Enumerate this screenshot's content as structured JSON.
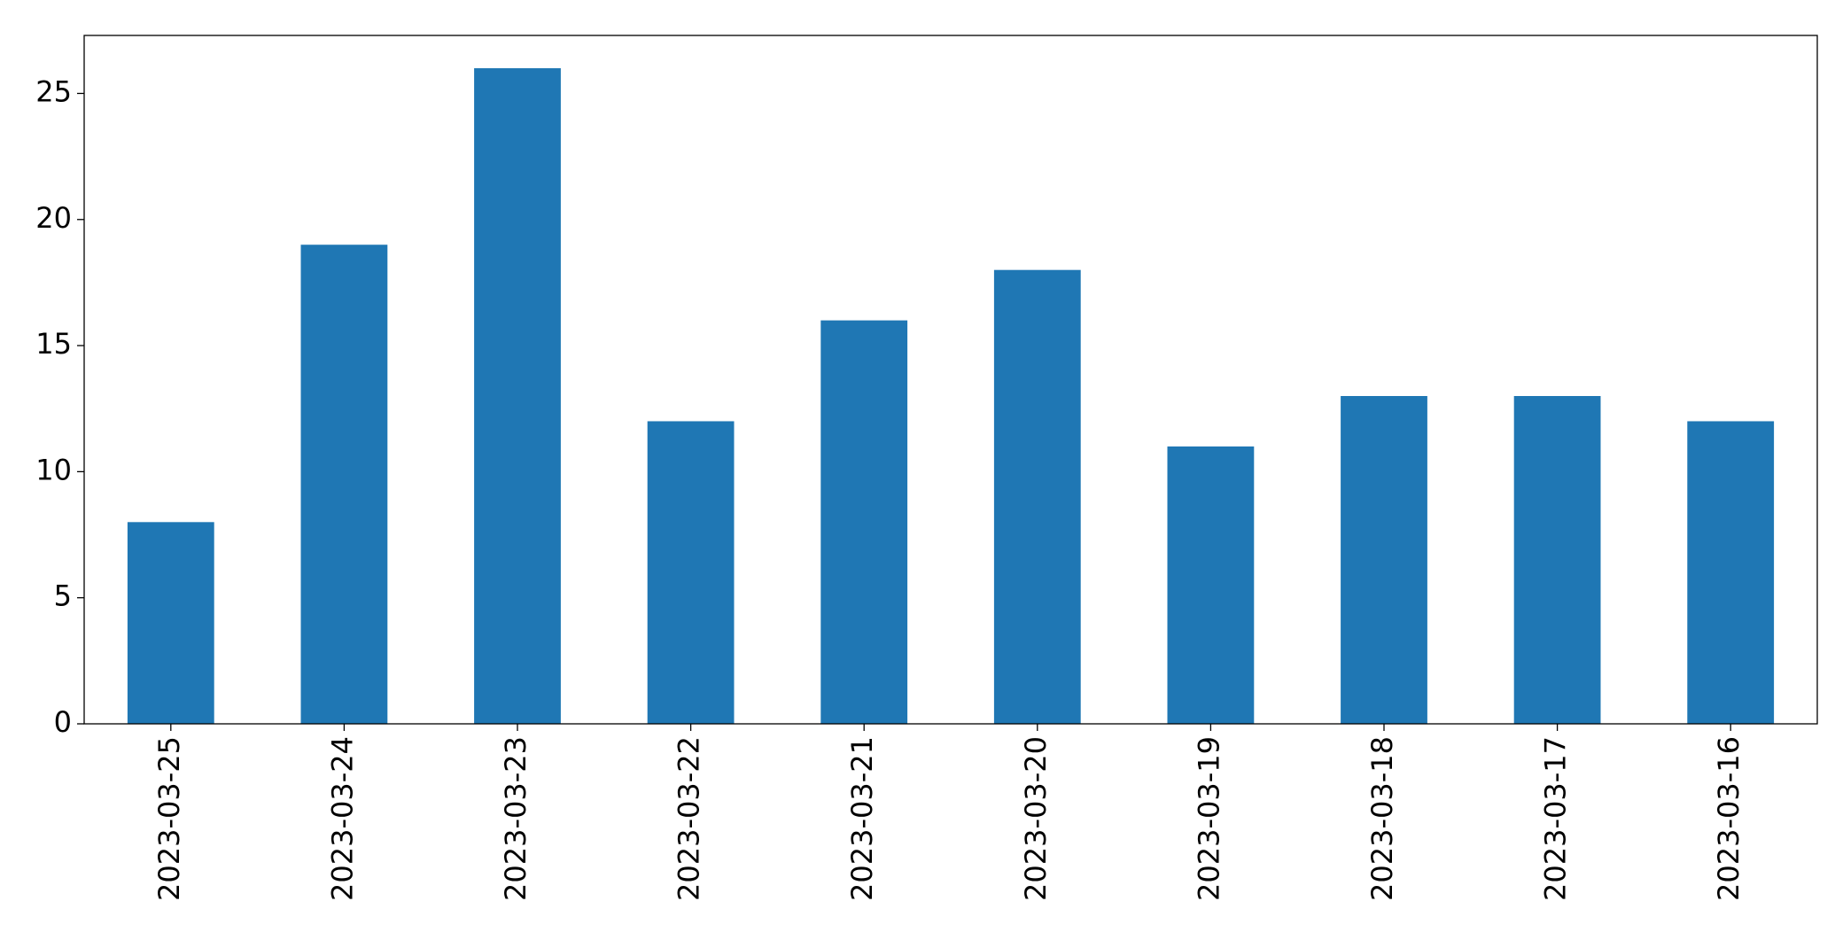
{
  "chart_data": {
    "type": "bar",
    "categories": [
      "2023-03-25",
      "2023-03-24",
      "2023-03-23",
      "2023-03-22",
      "2023-03-21",
      "2023-03-20",
      "2023-03-19",
      "2023-03-18",
      "2023-03-17",
      "2023-03-16"
    ],
    "values": [
      8,
      19,
      26,
      12,
      16,
      18,
      11,
      13,
      13,
      12
    ],
    "color": "#1f77b4",
    "ylim": [
      0,
      27.3
    ],
    "yticks": [
      0,
      5,
      10,
      15,
      20,
      25
    ],
    "grid": false
  }
}
